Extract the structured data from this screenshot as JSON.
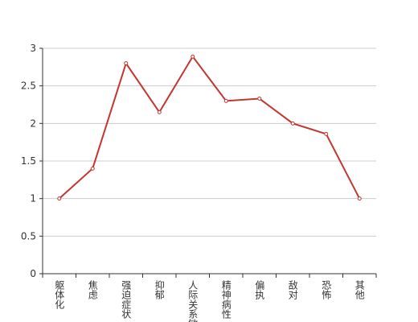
{
  "chart_data": {
    "type": "line",
    "categories": [
      "躯体化",
      "焦虑",
      "强迫症状",
      "抑郁",
      "人际关系敏感",
      "精神病性",
      "偏执",
      "敌对",
      "恐怖",
      "其他"
    ],
    "series": [
      {
        "color": "#c23531",
        "values": [
          1,
          1.4,
          2.8,
          2.15,
          2.89,
          2.3,
          2.33,
          2.0,
          1.86,
          1.0
        ]
      }
    ],
    "ylim": [
      0,
      3
    ],
    "yticks": [
      0,
      0.5,
      1,
      1.5,
      2,
      2.5,
      3
    ],
    "grid": true
  }
}
